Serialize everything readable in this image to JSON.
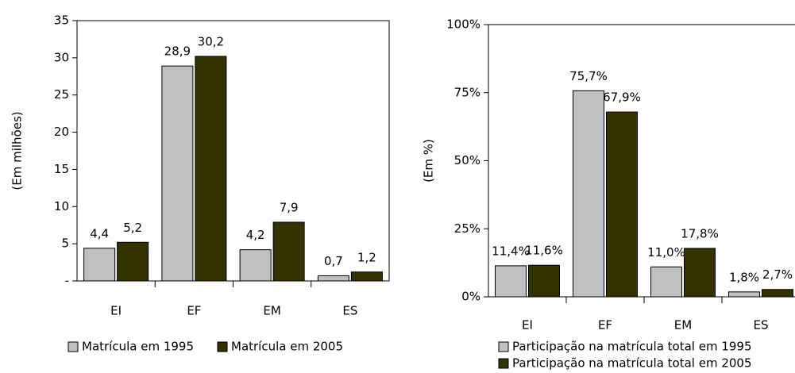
{
  "chart_data": [
    {
      "type": "bar",
      "ylabel": "(Em milhões)",
      "categories": [
        "EI",
        "EF",
        "EM",
        "ES"
      ],
      "series": [
        {
          "name": "Matrícula em 1995",
          "color": "#c0c0c0",
          "values": [
            4.4,
            28.9,
            4.2,
            0.7
          ],
          "value_labels": [
            "4,4",
            "28,9",
            "4,2",
            "0,7"
          ]
        },
        {
          "name": "Matrícula em 2005",
          "color": "#333300",
          "values": [
            5.2,
            30.2,
            7.9,
            1.2
          ],
          "value_labels": [
            "5,2",
            "30,2",
            "7,9",
            "1,2"
          ]
        }
      ],
      "ylim": [
        0,
        35
      ],
      "yticks": [
        {
          "value": 0,
          "label": "-"
        },
        5,
        10,
        15,
        20,
        25,
        30,
        35
      ],
      "legend": "bottom"
    },
    {
      "type": "bar",
      "ylabel": "(Em %)",
      "categories": [
        "EI",
        "EF",
        "EM",
        "ES"
      ],
      "series": [
        {
          "name": "Participação na matrícula total em 1995",
          "color": "#c0c0c0",
          "values": [
            11.4,
            75.7,
            11.0,
            1.8
          ],
          "value_labels": [
            "11,4%",
            "75,7%",
            "11,0%",
            "1,8%"
          ]
        },
        {
          "name": "Participação na matrícula total em 2005",
          "color": "#333300",
          "values": [
            11.6,
            67.9,
            17.8,
            2.7
          ],
          "value_labels": [
            "11,6%",
            "67,9%",
            "17,8%",
            "2,7%"
          ]
        }
      ],
      "ylim": [
        0,
        100
      ],
      "yticks": [
        {
          "value": 0,
          "label": "0%"
        },
        {
          "value": 25,
          "label": "25%"
        },
        {
          "value": 50,
          "label": "50%"
        },
        {
          "value": 75,
          "label": "75%"
        },
        {
          "value": 100,
          "label": "100%"
        }
      ],
      "legend": "bottom"
    }
  ]
}
